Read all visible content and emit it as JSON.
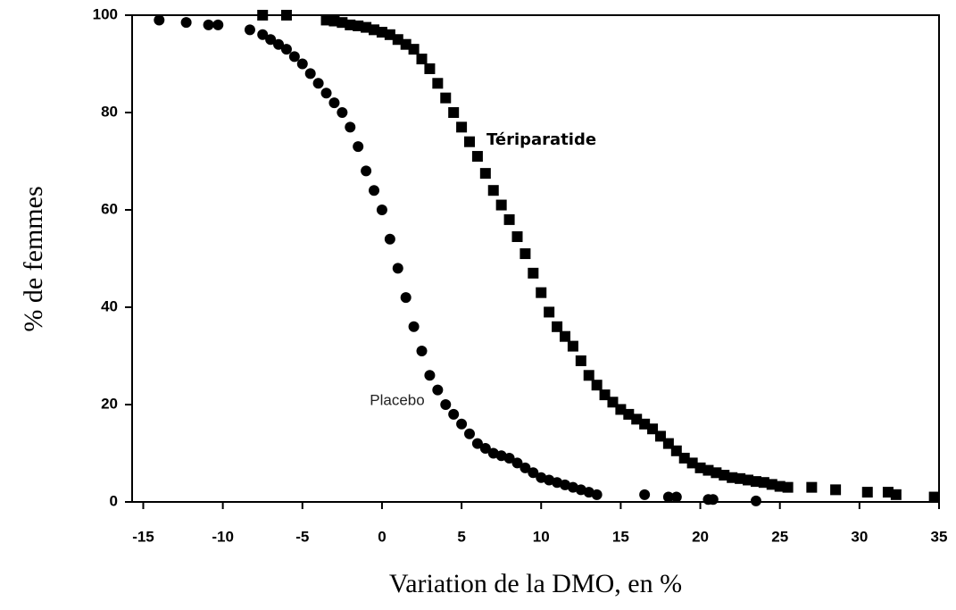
{
  "chart_data": {
    "type": "scatter",
    "x_label": "Variation de la DMO, en %",
    "y_label": "% de femmes",
    "xlim": [
      -15.7,
      35
    ],
    "xticks": [
      -15,
      -10,
      -5,
      0,
      5,
      10,
      15,
      20,
      25,
      30,
      35
    ],
    "ylim": [
      0,
      100
    ],
    "yticks": [
      0,
      20,
      40,
      60,
      80,
      100
    ],
    "grid": false,
    "series": [
      {
        "name": "Placebo",
        "marker": "circle",
        "color": "#000000",
        "x": [
          -14,
          -12.3,
          -10.9,
          -10.3,
          -8.3,
          -7.5,
          -7,
          -6.5,
          -6,
          -5.5,
          -5,
          -4.5,
          -4,
          -3.5,
          -3,
          -2.5,
          -2,
          -1.5,
          -1,
          -0.5,
          0,
          0.5,
          1,
          1.5,
          2,
          2.5,
          3,
          3.5,
          4,
          4.5,
          5,
          5.5,
          6,
          6.5,
          7,
          7.5,
          8,
          8.5,
          9,
          9.5,
          10,
          10.5,
          11,
          11.5,
          12,
          12.5,
          13,
          13.5,
          16.5,
          18,
          18.5,
          20.5,
          20.8,
          23.5
        ],
        "values": [
          99,
          98.5,
          98,
          98,
          97,
          96,
          95,
          94,
          93,
          91.5,
          90,
          88,
          86,
          84,
          82,
          80,
          77,
          73,
          68,
          64,
          60,
          54,
          48,
          42,
          36,
          31,
          26,
          23,
          20,
          18,
          16,
          14,
          12,
          11,
          10,
          9.5,
          9,
          8,
          7,
          6,
          5,
          4.5,
          4,
          3.5,
          3,
          2.5,
          2,
          1.5,
          1.5,
          1,
          1,
          0.5,
          0.5,
          0.2
        ]
      },
      {
        "name": "Tériparatide",
        "marker": "square",
        "color": "#000000",
        "x": [
          -7.5,
          -6,
          -3.5,
          -3,
          -2.5,
          -2,
          -1.5,
          -1,
          -0.5,
          0,
          0.5,
          1,
          1.5,
          2,
          2.5,
          3,
          3.5,
          4,
          4.5,
          5,
          5.5,
          6,
          6.5,
          7,
          7.5,
          8,
          8.5,
          9,
          9.5,
          10,
          10.5,
          11,
          11.5,
          12,
          12.5,
          13,
          13.5,
          14,
          14.5,
          15,
          15.5,
          16,
          16.5,
          17,
          17.5,
          18,
          18.5,
          19,
          19.5,
          20,
          20.5,
          21,
          21.5,
          22,
          22.5,
          23,
          23.5,
          24,
          24.5,
          25,
          25.5,
          27,
          28.5,
          30.5,
          31.8,
          32.3,
          34.7
        ],
        "values": [
          100,
          100,
          99,
          98.8,
          98.5,
          98,
          97.8,
          97.5,
          97,
          96.5,
          96,
          95,
          94,
          93,
          91,
          89,
          86,
          83,
          80,
          77,
          74,
          71,
          67.5,
          64,
          61,
          58,
          54.5,
          51,
          47,
          43,
          39,
          36,
          34,
          32,
          29,
          26,
          24,
          22,
          20.5,
          19,
          18,
          17,
          16,
          15,
          13.5,
          12,
          10.5,
          9,
          8,
          7,
          6.5,
          6,
          5.5,
          5,
          4.8,
          4.5,
          4.2,
          4,
          3.6,
          3.2,
          3,
          3,
          2.5,
          2,
          2,
          1.5,
          1
        ]
      }
    ]
  }
}
